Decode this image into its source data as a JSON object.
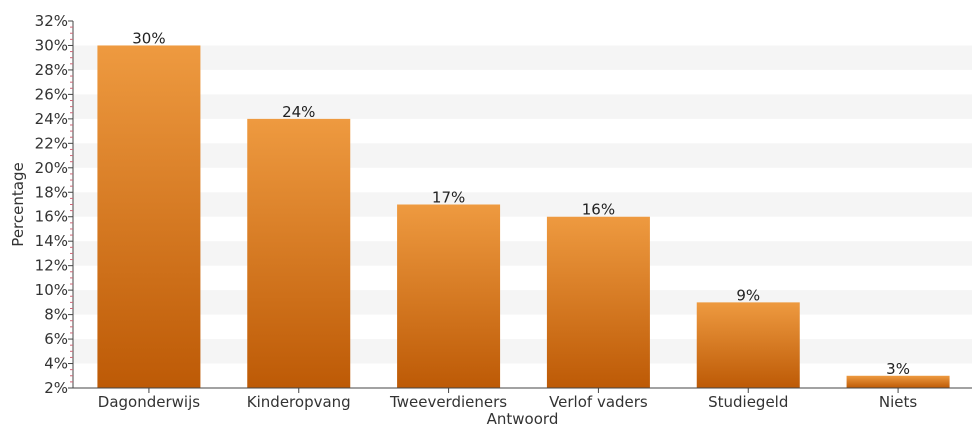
{
  "chart_data": {
    "type": "bar",
    "title": "",
    "xlabel": "Antwoord",
    "ylabel": "Percentage",
    "categories": [
      "Dagonderwijs",
      "Kinderopvang",
      "Tweeverdieners",
      "Verlof vaders",
      "Studiegeld",
      "Niets"
    ],
    "values": [
      30,
      24,
      17,
      16,
      9,
      3
    ],
    "value_labels": [
      "30%",
      "24%",
      "17%",
      "16%",
      "9%",
      "3%"
    ],
    "ylim": [
      2,
      32
    ],
    "yticks": [
      2,
      4,
      6,
      8,
      10,
      12,
      14,
      16,
      18,
      20,
      22,
      24,
      26,
      28,
      30,
      32
    ],
    "ytick_labels": [
      "2%",
      "4%",
      "6%",
      "8%",
      "10%",
      "12%",
      "14%",
      "16%",
      "18%",
      "20%",
      "22%",
      "24%",
      "26%",
      "28%",
      "30%",
      "32%"
    ],
    "grid": "alternating horizontal bands",
    "legend": "none",
    "colors": {
      "bar_top": "#EE9A40",
      "bar_bottom": "#BD5A06",
      "band": "#F5F5F5",
      "axis": "#444444",
      "minor_tick": "#CC6677"
    }
  }
}
